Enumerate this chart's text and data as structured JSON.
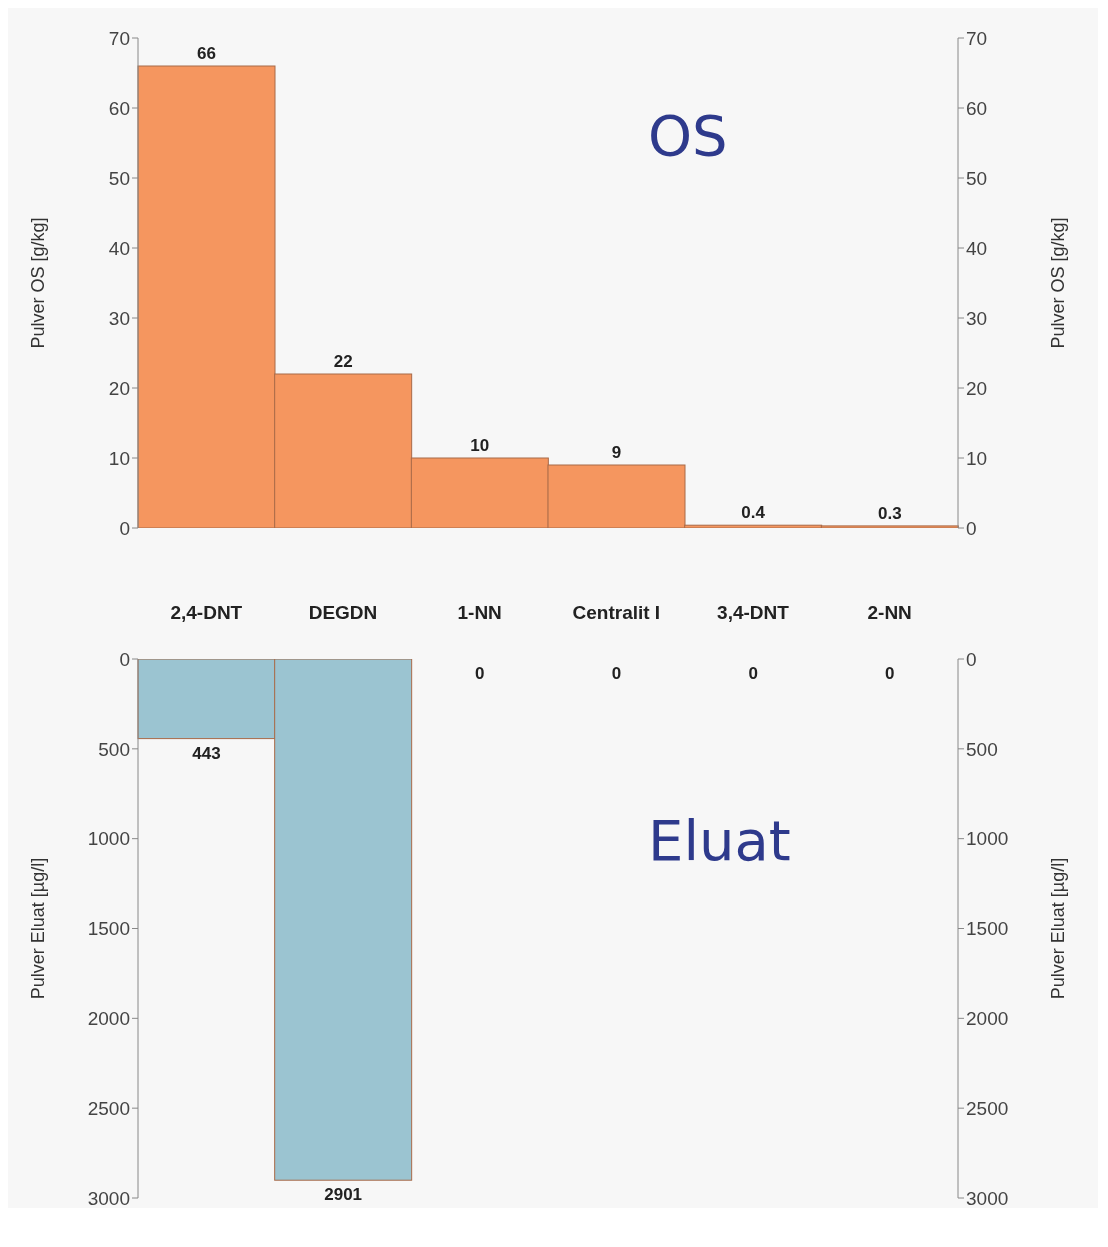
{
  "chart_data": [
    {
      "type": "bar",
      "categories": [
        "2,4-DNT",
        "DEGDN",
        "1-NN",
        "Centralit I",
        "3,4-DNT",
        "2-NN"
      ],
      "values": [
        66,
        22,
        10,
        9,
        0.4,
        0.3
      ],
      "color": "#f5965f",
      "ylim": [
        0,
        70
      ],
      "yticks": [
        0,
        10,
        20,
        30,
        40,
        50,
        60,
        70
      ],
      "y2lim": [
        0,
        70
      ],
      "y2ticks": [
        0,
        10,
        20,
        30,
        40,
        50,
        60,
        70
      ],
      "ylabel": "Pulver OS [g/kg]",
      "y2label": "Pulver OS [g/kg]",
      "data_labels": true,
      "annotations": [
        "OS"
      ],
      "grid": false,
      "legend": false
    },
    {
      "type": "bar",
      "categories": [
        "2,4-DNT",
        "DEGDN",
        "1-NN",
        "Centralit I",
        "3,4-DNT",
        "2-NN"
      ],
      "values": [
        443,
        2901,
        0,
        0,
        0,
        0
      ],
      "color": "#9bc4d1",
      "ylim": [
        3000,
        0
      ],
      "yticks": [
        0,
        500,
        1000,
        1500,
        2000,
        2500,
        3000
      ],
      "y2lim": [
        3000,
        0
      ],
      "y2ticks": [
        0,
        500,
        1000,
        1500,
        2000,
        2500,
        3000
      ],
      "ylabel": "Pulver Eluat [µg/l]",
      "y2label": "Pulver Eluat [µg/l]",
      "data_labels": true,
      "annotations": [
        "Eluat"
      ],
      "tick_labels": "y",
      "grid": false,
      "legend": false
    }
  ]
}
